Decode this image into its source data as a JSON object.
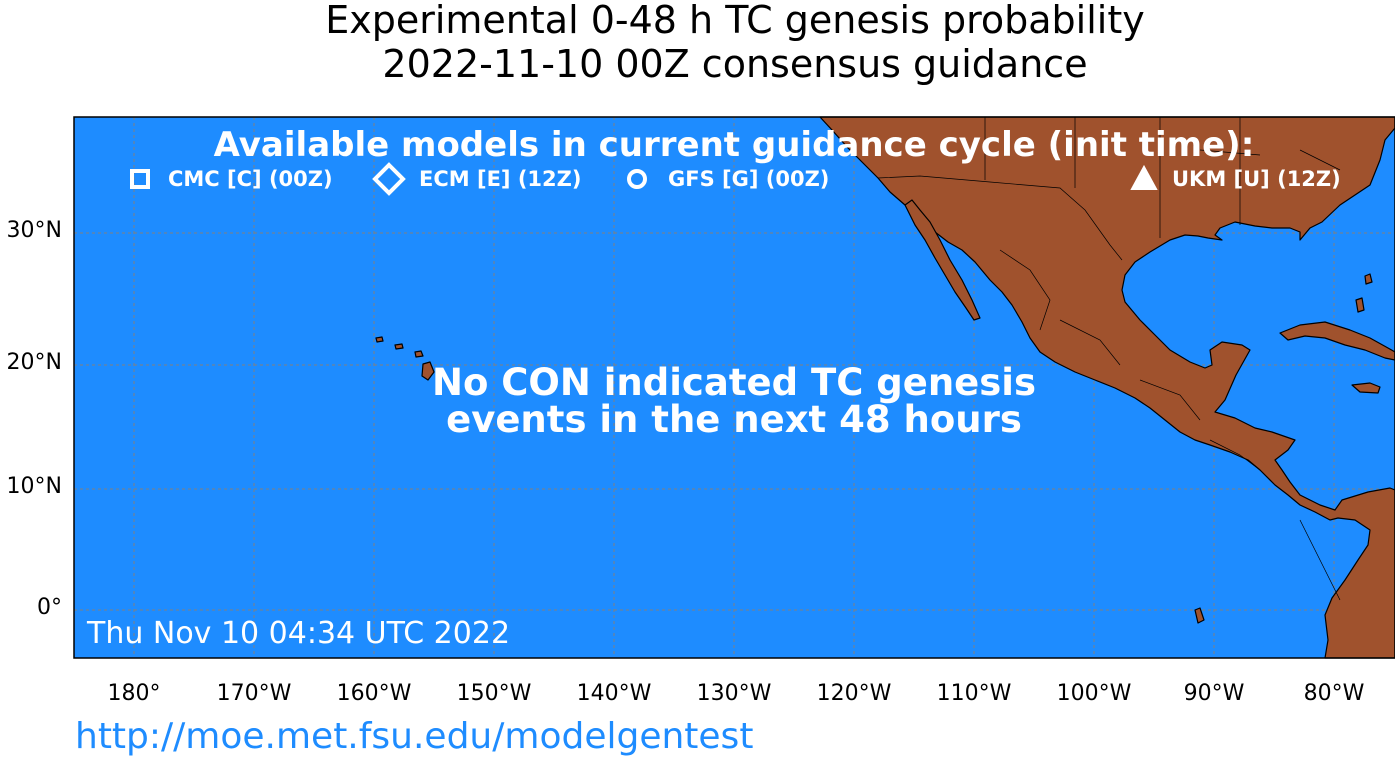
{
  "title": {
    "line1": "Experimental 0-48 h TC genesis probability",
    "line2": "2022-11-10 00Z consensus guidance"
  },
  "legend": {
    "heading": "Available models in current guidance cycle (init time):",
    "models": [
      {
        "marker": "square-icon",
        "label": "CMC [C] (00Z)"
      },
      {
        "marker": "diamond-icon",
        "label": "ECM [E] (12Z)"
      },
      {
        "marker": "circle-icon",
        "label": "GFS [G] (00Z)"
      },
      {
        "marker": "triangle-icon",
        "label": "UKM [U] (12Z)"
      }
    ]
  },
  "message": {
    "line1": "No CON indicated TC genesis",
    "line2": "events in the next 48 hours"
  },
  "timestamp": "Thu Nov 10 04:34 UTC 2022",
  "url": "http://moe.met.fsu.edu/modelgentest",
  "axes": {
    "lat_labels": [
      "30°N",
      "20°N",
      "10°N",
      "0°"
    ],
    "lon_labels": [
      "180°",
      "170°W",
      "160°W",
      "150°W",
      "140°W",
      "130°W",
      "120°W",
      "110°W",
      "100°W",
      "90°W",
      "80°W"
    ]
  },
  "extent": {
    "lon_min": -185,
    "lon_max": -75,
    "lat_min": -4,
    "lat_max": 39
  },
  "colors": {
    "ocean": "#1e8cff",
    "land": "#a0522d",
    "grid": "#808080",
    "overlay_text": "#ffffff",
    "url": "#1e8cff"
  }
}
